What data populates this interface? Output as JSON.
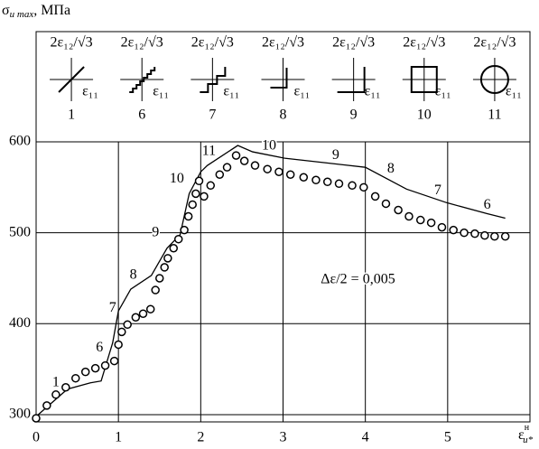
{
  "chart_data": {
    "type": "line",
    "ylabel_symbol": "σ",
    "ylabel_sub": "u max",
    "ylabel_unit": ", МПа",
    "xlabel_symbol": "ε",
    "xlabel_sup": "н",
    "xlabel_sub": "u*",
    "panel_y_label": "2ε₁₂/√3",
    "panel_x_label": "ε₁₁",
    "panels": [
      "1",
      "6",
      "7",
      "8",
      "9",
      "10",
      "11"
    ],
    "xlim": [
      0,
      6
    ],
    "ylim": [
      292,
      600
    ],
    "xticks": [
      0,
      1,
      2,
      3,
      4,
      5
    ],
    "yticks": [
      300,
      400,
      500,
      600
    ],
    "grid": true,
    "series": [
      {
        "style": "line",
        "color": "#000000",
        "x": [
          0,
          0.38,
          0.66,
          0.79,
          0.93,
          1.0,
          1.15,
          1.4,
          1.59,
          1.75,
          1.86,
          2.0,
          2.08,
          2.45,
          2.63,
          3.02,
          3.51,
          4.0,
          4.5,
          4.99,
          5.48,
          5.7
        ],
        "values": [
          298,
          328,
          335,
          337,
          379,
          414,
          438,
          453,
          483,
          498,
          543,
          567,
          574,
          596,
          589,
          582,
          577,
          572,
          548,
          533,
          521,
          516
        ]
      },
      {
        "style": "markers",
        "color": "#000000",
        "x": [
          0,
          0.13,
          0.24,
          0.36,
          0.48,
          0.6,
          0.72,
          0.84,
          0.95,
          1.0,
          1.04,
          1.11,
          1.21,
          1.3,
          1.39,
          1.45,
          1.5,
          1.56,
          1.6,
          1.67,
          1.73,
          1.8,
          1.85,
          1.9,
          1.94,
          1.98,
          2.04,
          2.12,
          2.23,
          2.32,
          2.43,
          2.53,
          2.66,
          2.81,
          2.95,
          3.09,
          3.25,
          3.4,
          3.54,
          3.68,
          3.84,
          3.98,
          4.12,
          4.25,
          4.4,
          4.53,
          4.67,
          4.8,
          4.93,
          5.07,
          5.2,
          5.33,
          5.45,
          5.57,
          5.7
        ],
        "values": [
          296,
          310,
          322,
          330,
          340,
          347,
          351,
          354,
          359,
          377,
          391,
          399,
          407,
          411,
          416,
          437,
          450,
          462,
          472,
          483,
          493,
          503,
          518,
          531,
          543,
          557,
          540,
          552,
          564,
          572,
          585,
          579,
          574,
          570,
          567,
          564,
          561,
          558,
          556,
          554,
          552,
          550,
          540,
          532,
          525,
          518,
          514,
          511,
          506,
          503,
          500,
          499,
          497,
          496,
          496
        ]
      }
    ],
    "annotations": [
      {
        "text": "1",
        "x": 0.24,
        "y": 335
      },
      {
        "text": "6",
        "x": 0.77,
        "y": 373
      },
      {
        "text": "7",
        "x": 0.93,
        "y": 417
      },
      {
        "text": "8",
        "x": 1.18,
        "y": 453
      },
      {
        "text": "9",
        "x": 1.45,
        "y": 500
      },
      {
        "text": "10",
        "x": 1.71,
        "y": 559
      },
      {
        "text": "11",
        "x": 2.1,
        "y": 589
      },
      {
        "text": "10",
        "x": 2.83,
        "y": 595
      },
      {
        "text": "9",
        "x": 3.64,
        "y": 585
      },
      {
        "text": "8",
        "x": 4.31,
        "y": 570
      },
      {
        "text": "7",
        "x": 4.88,
        "y": 546
      },
      {
        "text": "6",
        "x": 5.48,
        "y": 530
      },
      {
        "text": "Δε/2 = 0,005",
        "x": 3.91,
        "y": 448
      }
    ]
  }
}
